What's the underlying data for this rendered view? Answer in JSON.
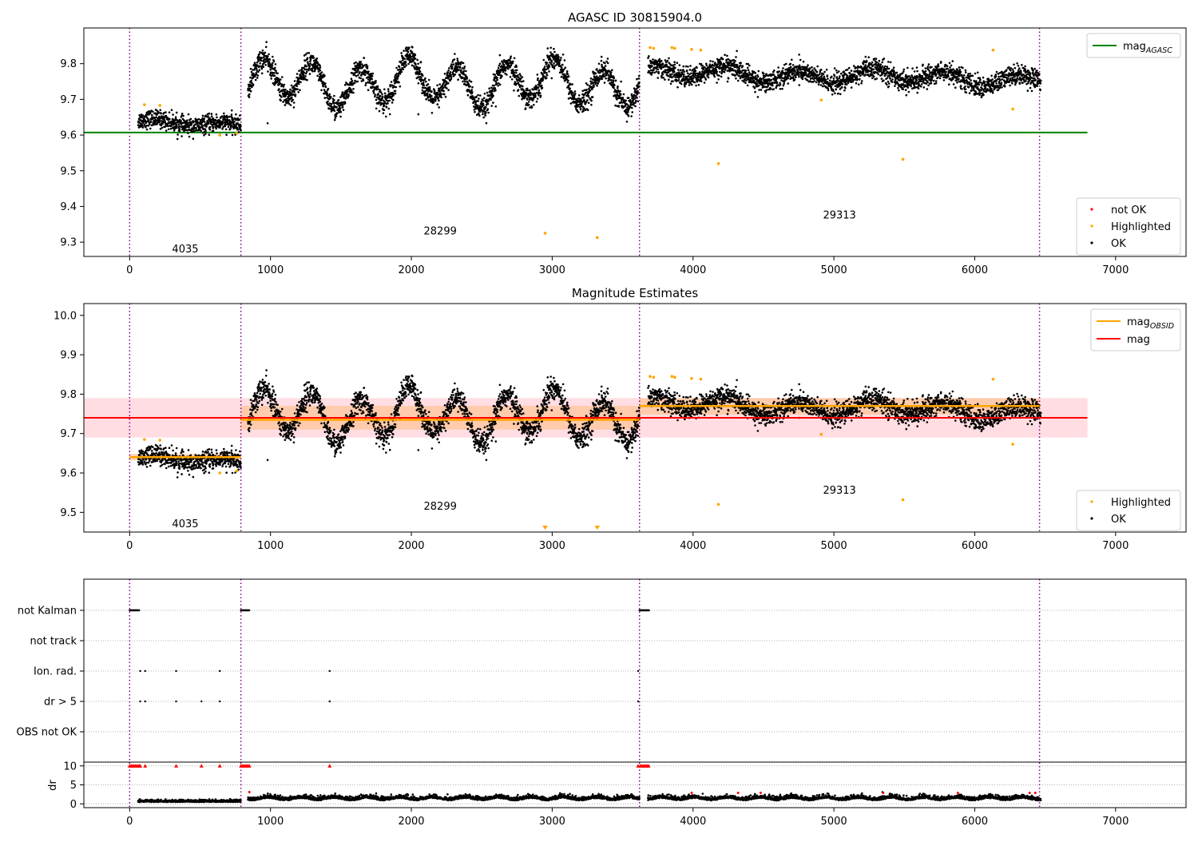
{
  "chart_data": [
    {
      "type": "scatter",
      "title": "AGASC ID 30815904.0",
      "xlim": [
        -325,
        7500
      ],
      "ylim": [
        9.26,
        9.9
      ],
      "xticks": [
        0,
        1000,
        2000,
        3000,
        4000,
        5000,
        6000,
        7000
      ],
      "yticks": [
        9.3,
        9.4,
        9.5,
        9.6,
        9.7,
        9.8
      ],
      "color_ok": "#000000",
      "color_highlighted": "#ffa500",
      "color_not_ok": "#ff0000",
      "color_agasc": "#008000",
      "color_obsid_line": "#800080",
      "agasc_mag": 9.607,
      "agasc_xrange": [
        -325,
        6800
      ],
      "obsid_boundaries": [
        0,
        790,
        3620,
        6460
      ],
      "obsid_labels": [
        {
          "text": "4035",
          "x": 395,
          "y": 9.28
        },
        {
          "text": "28299",
          "x": 2205,
          "y": 9.33
        },
        {
          "text": "29313",
          "x": 5040,
          "y": 9.375
        }
      ],
      "legend_lines": [
        {
          "label": "mag",
          "sub": "AGASC"
        }
      ],
      "legend_points": [
        "not OK",
        "Highlighted",
        "OK"
      ],
      "legend_lines_position": "upper-right",
      "legend_points_position": "lower-right",
      "highlighted": [
        [
          105,
          9.685
        ],
        [
          215,
          9.683
        ],
        [
          640,
          9.6
        ],
        [
          760,
          9.605
        ],
        [
          2950,
          9.325
        ],
        [
          3320,
          9.313
        ],
        [
          4180,
          9.52
        ],
        [
          4910,
          9.698
        ],
        [
          5490,
          9.532
        ],
        [
          6270,
          9.673
        ],
        [
          6130,
          9.838
        ],
        [
          3695,
          9.845
        ],
        [
          3720,
          9.843
        ],
        [
          3850,
          9.845
        ],
        [
          3870,
          9.843
        ],
        [
          3990,
          9.84
        ],
        [
          4055,
          9.838
        ]
      ],
      "segments": [
        {
          "x0": 60,
          "x1": 790,
          "base": 9.64,
          "drift": -0.015,
          "amp": 0.008,
          "noise": 0.012
        },
        {
          "x0": 840,
          "x1": 3620,
          "base": 9.745,
          "drift": 0.0,
          "amp": 0.055,
          "period": 345,
          "noise": 0.016
        },
        {
          "x0": 3680,
          "x1": 6470,
          "base": 9.775,
          "drift": -0.02,
          "amp": 0.018,
          "period": 520,
          "noise": 0.014
        }
      ],
      "outliers_ok": [
        [
          980,
          9.633
        ],
        [
          2050,
          9.658
        ],
        [
          2600,
          9.68
        ]
      ]
    },
    {
      "type": "scatter",
      "title": "Magnitude Estimates",
      "xlim": [
        -325,
        7500
      ],
      "ylim": [
        9.45,
        10.03
      ],
      "xticks": [
        0,
        1000,
        2000,
        3000,
        4000,
        5000,
        6000,
        7000
      ],
      "yticks": [
        9.5,
        9.6,
        9.7,
        9.8,
        9.9,
        10.0
      ],
      "mag": 9.74,
      "mag_band": [
        9.69,
        9.79
      ],
      "mag_xrange": [
        -325,
        6800
      ],
      "color_mag": "#ff0000",
      "color_obsid_mag": "#ffa500",
      "obsid_mags": [
        {
          "x0": 0,
          "x1": 790,
          "mag": 9.64,
          "band": [
            9.632,
            9.648
          ]
        },
        {
          "x0": 790,
          "x1": 3620,
          "mag": 9.735,
          "band": [
            9.71,
            9.77
          ]
        },
        {
          "x0": 3620,
          "x1": 6460,
          "mag": 9.77,
          "band": [
            9.748,
            9.79
          ]
        }
      ],
      "obsid_labels": [
        {
          "text": "4035",
          "x": 395,
          "y": 9.47
        },
        {
          "text": "28299",
          "x": 2205,
          "y": 9.515
        },
        {
          "text": "29313",
          "x": 5040,
          "y": 9.555
        }
      ],
      "below_range_markers": [
        2950,
        3320
      ],
      "legend_lines": [
        {
          "label": "mag",
          "sub": "OBSID"
        },
        {
          "label": "mag",
          "sub": ""
        }
      ],
      "legend_points": [
        "Highlighted",
        "OK"
      ],
      "legend_lines_position": "upper-right",
      "legend_points_position": "lower-right"
    },
    {
      "type": "scatter",
      "title": "",
      "xlim": [
        -325,
        7500
      ],
      "xticks": [
        0,
        1000,
        2000,
        3000,
        4000,
        5000,
        6000,
        7000
      ],
      "flag_rows": [
        "not Kalman",
        "not track",
        "Ion. rad.",
        "dr > 5",
        "OBS not OK"
      ],
      "flags": {
        "not Kalman": [
          [
            0,
            70
          ],
          [
            790,
            850
          ],
          [
            3620,
            3690
          ]
        ],
        "Ion. rad.": [
          75,
          110,
          330,
          640,
          1420,
          3610
        ],
        "dr > 5": [
          75,
          110,
          330,
          510,
          640,
          1420,
          3610
        ]
      },
      "dr_ylabel": "dr",
      "dr_ylim": [
        -1,
        11
      ],
      "dr_yticks": [
        0,
        5,
        10
      ],
      "dr_clip_markers": [
        0,
        10,
        20,
        30,
        40,
        50,
        60,
        70,
        75,
        110,
        330,
        510,
        640,
        790,
        800,
        810,
        820,
        830,
        840,
        850,
        1420,
        3610,
        3625,
        3635,
        3645,
        3655,
        3665,
        3675,
        3685
      ]
    }
  ]
}
